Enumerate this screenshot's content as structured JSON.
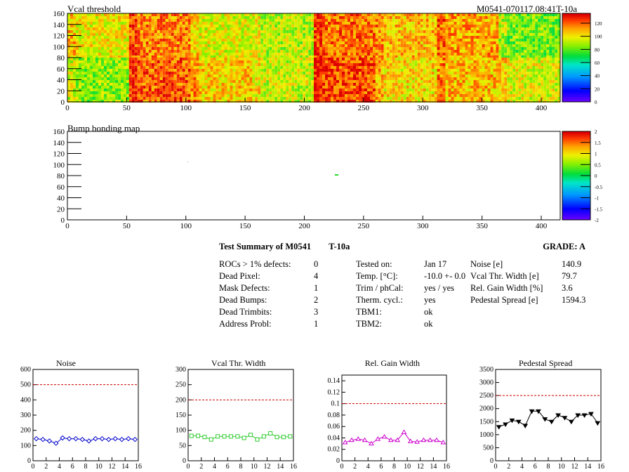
{
  "header": {
    "map1_title": "Vcal threshold",
    "module_id": "M0541-070117.08:41T-10a",
    "map2_title": "Bump bonding map"
  },
  "maps": {
    "x_ticks": [
      "0",
      "50",
      "100",
      "150",
      "200",
      "250",
      "300",
      "350",
      "400"
    ],
    "y_ticks": [
      "0",
      "20",
      "40",
      "60",
      "80",
      "100",
      "120",
      "140",
      "160"
    ],
    "vcal_palette_ticks": [
      "0",
      "20",
      "40",
      "60",
      "80",
      "100",
      "120"
    ],
    "bump_palette_ticks": [
      "-2",
      "-1.5",
      "-1",
      "-0.5",
      "0",
      "0.5",
      "1",
      "1.5",
      "2"
    ]
  },
  "summary": {
    "title": "Test Summary of M0541",
    "test_label": "T-10a",
    "grade_label": "GRADE:",
    "grade": "A",
    "defects": [
      {
        "label": "ROCs > 1% defects:",
        "value": "0"
      },
      {
        "label": "Dead Pixel:",
        "value": "4"
      },
      {
        "label": "Mask Defects:",
        "value": "1"
      },
      {
        "label": "Dead Bumps:",
        "value": "2"
      },
      {
        "label": "Dead Trimbits:",
        "value": "3"
      },
      {
        "label": "Address Probl:",
        "value": "1"
      }
    ],
    "conditions": [
      {
        "label": "Tested on:",
        "value": "Jan 17"
      },
      {
        "label": "Temp. [°C]:",
        "value": "-10.0 +- 0.0"
      },
      {
        "label": "Trim / phCal:",
        "value": "yes / yes"
      },
      {
        "label": "Therm. cycl.:",
        "value": "yes"
      },
      {
        "label": "TBM1:",
        "value": "ok"
      },
      {
        "label": "TBM2:",
        "value": "ok"
      }
    ],
    "results": [
      {
        "label": "Noise [e]",
        "value": "140.9"
      },
      {
        "label": "Vcal Thr. Width [e]",
        "value": "79.7"
      },
      {
        "label": "Rel. Gain Width [%]",
        "value": "3.6"
      },
      {
        "label": "Pedestal Spread [e]",
        "value": "1594.3"
      }
    ]
  },
  "colors": {
    "noise": "#0000cc",
    "vcal": "#33cc33",
    "gain": "#cc00cc",
    "pedestal": "#000000",
    "limit": "#cc0000"
  },
  "chart_data": [
    {
      "type": "line",
      "title": "Noise",
      "marker": "diamond",
      "x": [
        0,
        1,
        2,
        3,
        4,
        5,
        6,
        7,
        8,
        9,
        10,
        11,
        12,
        13,
        14,
        15
      ],
      "values": [
        145,
        140,
        130,
        115,
        150,
        145,
        145,
        140,
        130,
        145,
        145,
        140,
        145,
        140,
        145,
        140
      ],
      "ylim": [
        0,
        600
      ],
      "xlim": [
        0,
        16
      ],
      "limit": 500,
      "yticks": [
        "0",
        "100",
        "200",
        "300",
        "400",
        "500",
        "600"
      ],
      "xticks": [
        "0",
        "2",
        "4",
        "6",
        "8",
        "10",
        "12",
        "14",
        "16"
      ]
    },
    {
      "type": "line",
      "title": "Vcal Thr. Width",
      "marker": "square",
      "x": [
        0,
        1,
        2,
        3,
        4,
        5,
        6,
        7,
        8,
        9,
        10,
        11,
        12,
        13,
        14,
        15
      ],
      "values": [
        82,
        82,
        78,
        70,
        80,
        80,
        80,
        80,
        75,
        85,
        70,
        80,
        90,
        78,
        78,
        80
      ],
      "ylim": [
        0,
        300
      ],
      "xlim": [
        0,
        16
      ],
      "limit": 200,
      "yticks": [
        "0",
        "50",
        "100",
        "150",
        "200",
        "250",
        "300"
      ],
      "xticks": [
        "0",
        "2",
        "4",
        "6",
        "8",
        "10",
        "12",
        "14",
        "16"
      ]
    },
    {
      "type": "line",
      "title": "Rel. Gain Width",
      "marker": "triangle",
      "x": [
        0,
        1,
        2,
        3,
        4,
        5,
        6,
        7,
        8,
        9,
        10,
        11,
        12,
        13,
        14,
        15
      ],
      "values": [
        0.032,
        0.036,
        0.038,
        0.036,
        0.03,
        0.038,
        0.042,
        0.036,
        0.036,
        0.05,
        0.034,
        0.033,
        0.036,
        0.036,
        0.036,
        0.032
      ],
      "ylim": [
        0,
        0.15
      ],
      "xlim": [
        0,
        16
      ],
      "limit": 0.1,
      "yticks": [
        "0",
        "0.02",
        "0.04",
        "0.06",
        "0.08",
        "0.1",
        "0.12",
        "0.14"
      ],
      "xticks": [
        "0",
        "2",
        "4",
        "6",
        "8",
        "10",
        "12",
        "14",
        "16"
      ]
    },
    {
      "type": "line",
      "title": "Pedestal Spread",
      "marker": "triangle-down",
      "x": [
        0,
        1,
        2,
        3,
        4,
        5,
        6,
        7,
        8,
        9,
        10,
        11,
        12,
        13,
        14,
        15
      ],
      "values": [
        1300,
        1400,
        1550,
        1500,
        1350,
        1900,
        1900,
        1600,
        1500,
        1750,
        1650,
        1500,
        1750,
        1750,
        1800,
        1450
      ],
      "ylim": [
        0,
        3500
      ],
      "xlim": [
        0,
        16
      ],
      "limit": 2500,
      "yticks": [
        "0",
        "500",
        "1000",
        "1500",
        "2000",
        "2500",
        "3000",
        "3500"
      ],
      "xticks": [
        "0",
        "2",
        "4",
        "6",
        "8",
        "10",
        "12",
        "14",
        "16"
      ]
    }
  ]
}
